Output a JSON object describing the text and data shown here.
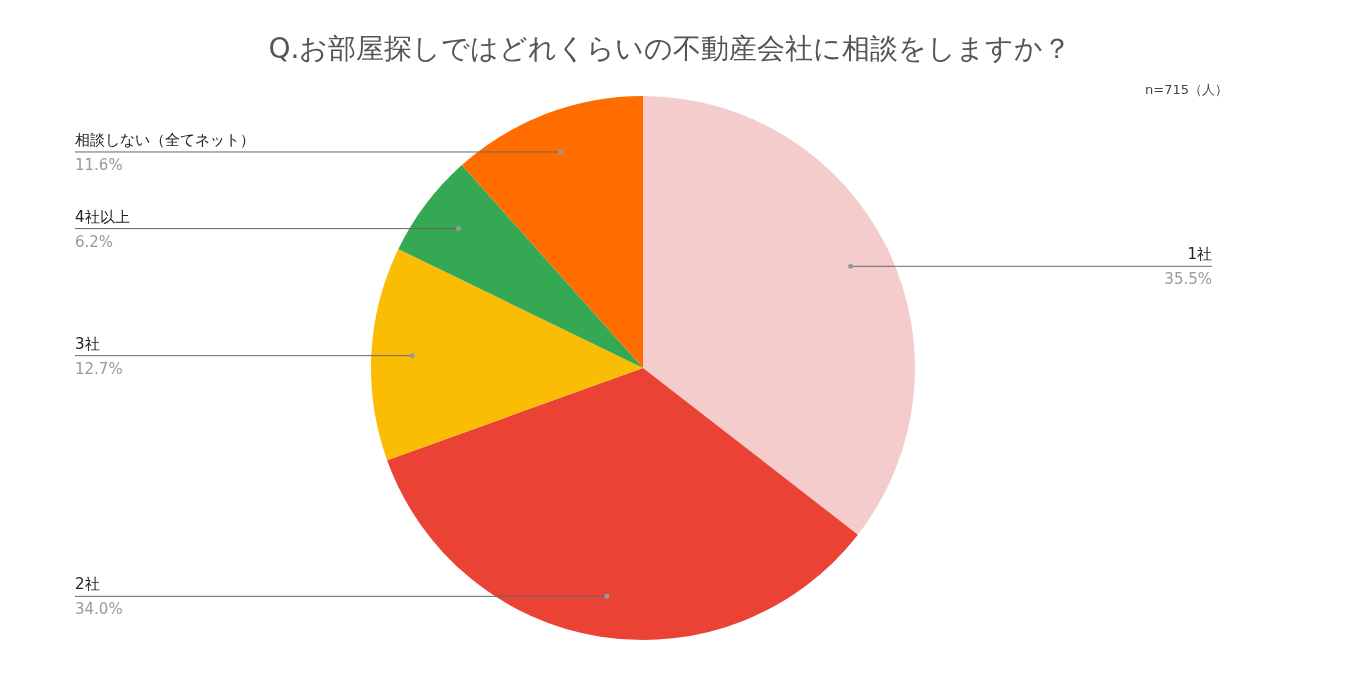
{
  "chart_data": {
    "type": "pie",
    "title": "Q.お部屋探しではどれくらいの不動産会社に相談をしますか？",
    "categories": [
      "1社",
      "2社",
      "3社",
      "4社以上",
      "相談しない（全てネット）"
    ],
    "values": [
      35.5,
      34.0,
      12.7,
      6.2,
      11.6
    ],
    "colors": [
      "#f4cccc",
      "#ea4335",
      "#fbbc04",
      "#34a853",
      "#ff6d01"
    ],
    "value_labels": [
      "35.5%",
      "34.0%",
      "12.7%",
      "6.2%",
      "11.6%"
    ],
    "annotations": [
      "n=715（人）"
    ]
  }
}
